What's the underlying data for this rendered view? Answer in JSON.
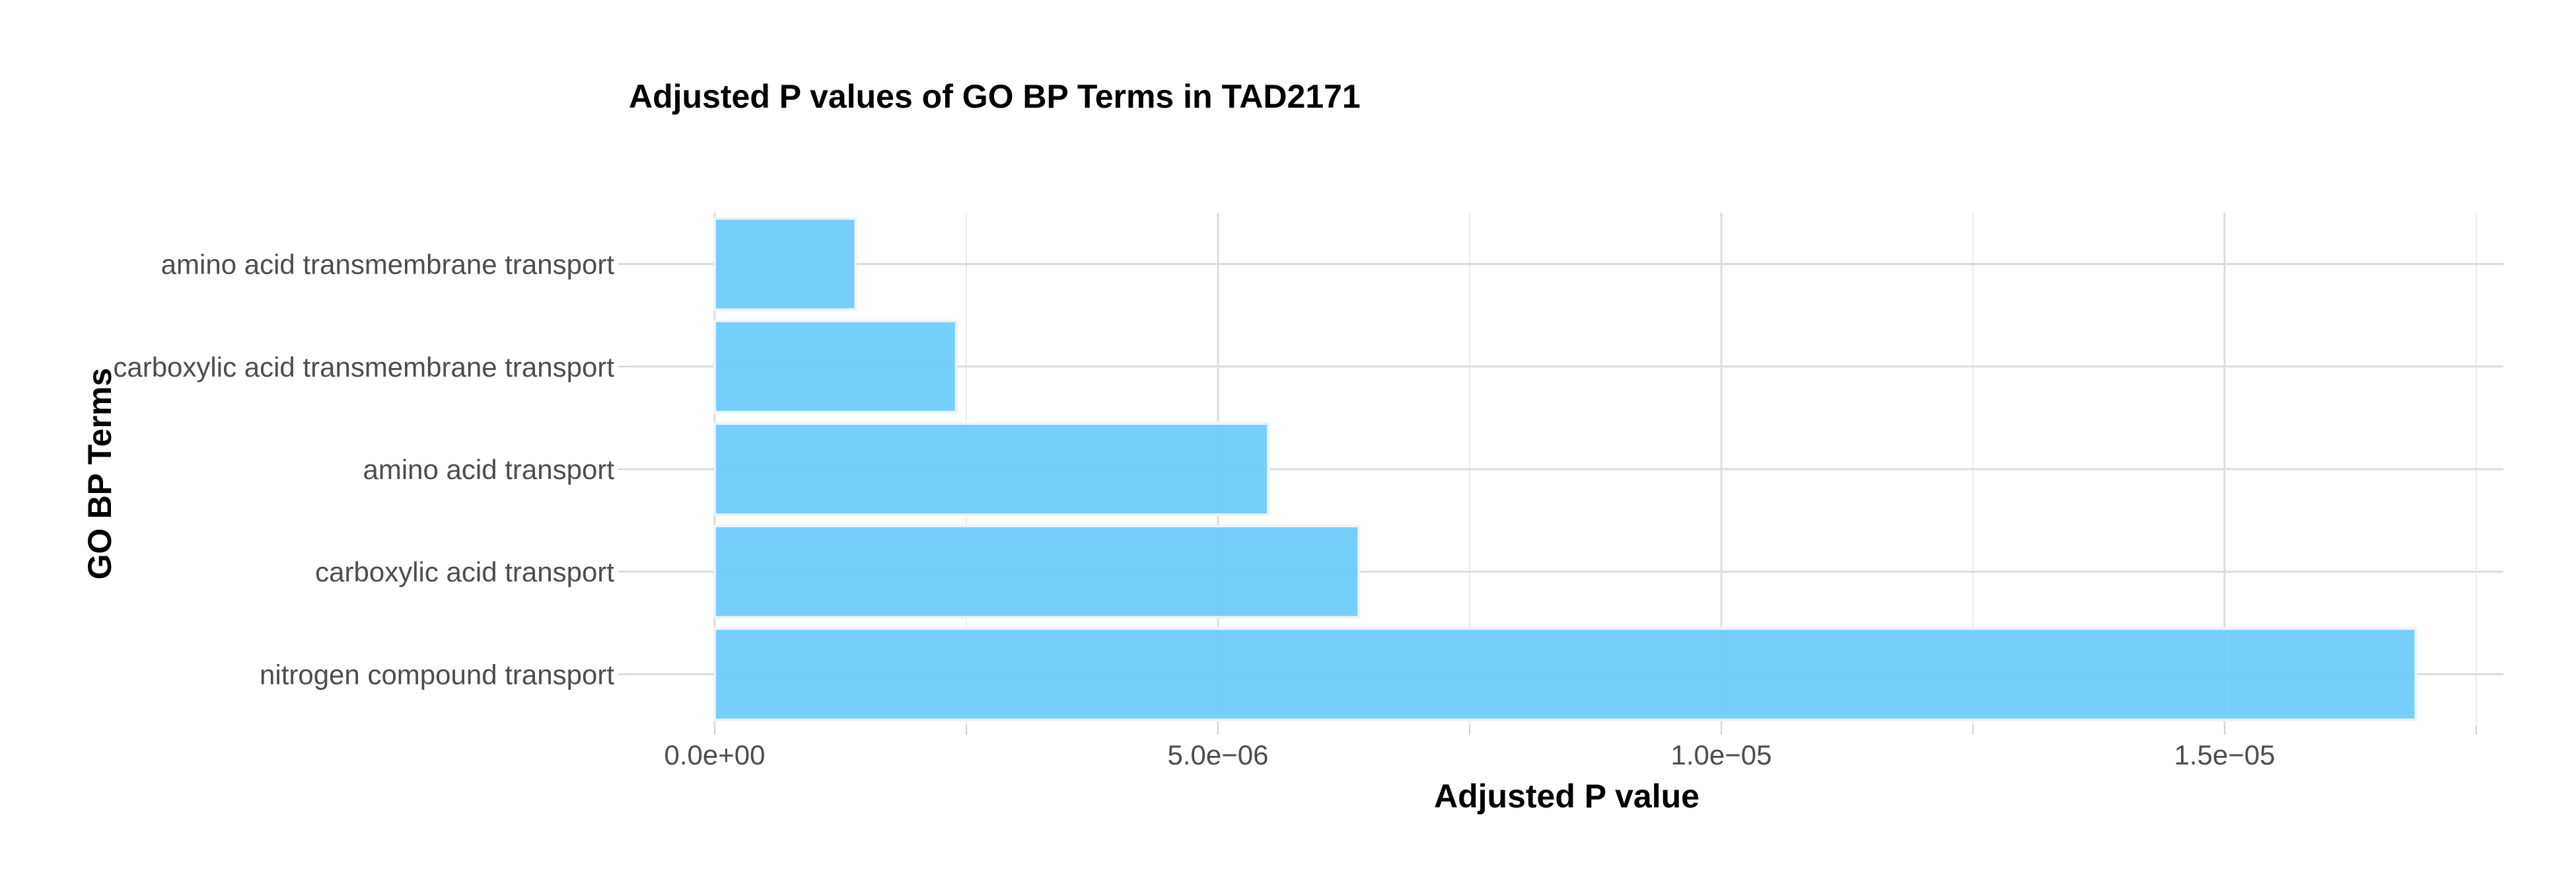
{
  "chart_data": {
    "type": "bar",
    "orientation": "horizontal",
    "title": "Adjusted P values of GO BP Terms in TAD2171",
    "xlabel": "Adjusted P value",
    "ylabel": "GO BP Terms",
    "categories": [
      "amino acid transmembrane transport",
      "carboxylic acid transmembrane transport",
      "amino acid transport",
      "carboxylic acid transport",
      "nitrogen compound transport"
    ],
    "values": [
      1.4e-06,
      2.4e-06,
      5.5e-06,
      6.4e-06,
      1.69e-05
    ],
    "xlim": [
      0,
      1.75e-05
    ],
    "x_ticks": [
      0,
      5e-06,
      1e-05,
      1.5e-05
    ],
    "x_tick_labels": [
      "0.0e+00",
      "5.0e−06",
      "1.0e−05",
      "1.5e−05"
    ],
    "x_minor_ticks": [
      2.5e-06,
      7.5e-06,
      1.25e-05,
      1.75e-05
    ],
    "grid": true,
    "bar_color": "#6ccbfb"
  }
}
